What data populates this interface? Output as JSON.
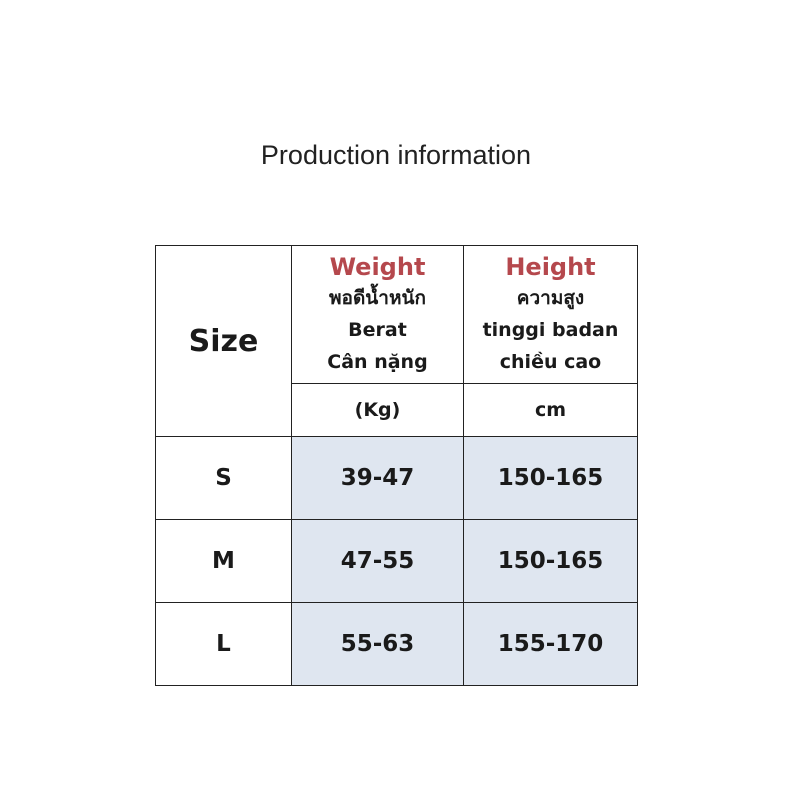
{
  "title": "Production information",
  "table": {
    "size_header": "Size",
    "columns": [
      {
        "name": "Weight",
        "translations": [
          "พอดีน้ำหนัก",
          "Berat",
          "Cân nặng"
        ],
        "unit": "(Kg)"
      },
      {
        "name": "Height",
        "translations": [
          "ความสูง",
          "tinggi badan",
          "chiều cao"
        ],
        "unit": "cm"
      }
    ],
    "rows": [
      [
        "S",
        "39-47",
        "150-165"
      ],
      [
        "M",
        "47-55",
        "150-165"
      ],
      [
        "L",
        "55-63",
        "155-170"
      ]
    ]
  }
}
